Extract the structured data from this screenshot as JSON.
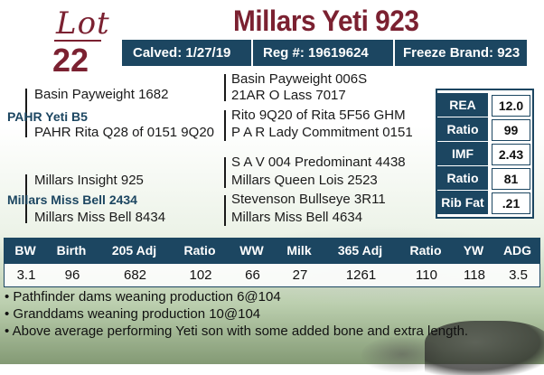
{
  "lot": {
    "word": "Lot",
    "number": "22"
  },
  "title": "Millars Yeti 923",
  "info": {
    "calved": "Calved: 1/27/19",
    "reg": "Reg #: 19619624",
    "freeze": "Freeze Brand: 923"
  },
  "pedigree": {
    "sire": "PAHR Yeti B5",
    "sire_sire": "Basin Payweight 1682",
    "sire_dam": "PAHR Rita Q28 of 0151 9Q20",
    "ss_sire": "Basin Payweight 006S",
    "ss_dam": "21AR O Lass 7017",
    "sd_sire": "Rito 9Q20 of Rita 5F56 GHM",
    "sd_dam": "P A R Lady Commitment 0151",
    "dam": "Millars Miss Bell 2434",
    "dam_sire": "Millars Insight 925",
    "dam_dam": "Millars Miss Bell 8434",
    "ds_sire": "S A V 004 Predominant 4438",
    "ds_dam": "Millars Queen Lois 2523",
    "dd_sire": "Stevenson Bullseye 3R11",
    "dd_dam": "Millars Miss Bell 4634"
  },
  "carcass": [
    {
      "label": "REA",
      "value": "12.0"
    },
    {
      "label": "Ratio",
      "value": "99"
    },
    {
      "label": "IMF",
      "value": "2.43"
    },
    {
      "label": "Ratio",
      "value": "81"
    },
    {
      "label": "Rib Fat",
      "value": ".21"
    }
  ],
  "performance": {
    "headers": [
      "BW",
      "Birth",
      "205 Adj",
      "Ratio",
      "WW",
      "Milk",
      "365 Adj",
      "Ratio",
      "YW",
      "ADG"
    ],
    "values": [
      "3.1",
      "96",
      "682",
      "102",
      "66",
      "27",
      "1261",
      "110",
      "118",
      "3.5"
    ]
  },
  "notes": [
    "• Pathfinder dams weaning production 6@104",
    "• Granddams weaning production 10@104",
    "• Above average performing Yeti son with some added bone and extra length."
  ]
}
